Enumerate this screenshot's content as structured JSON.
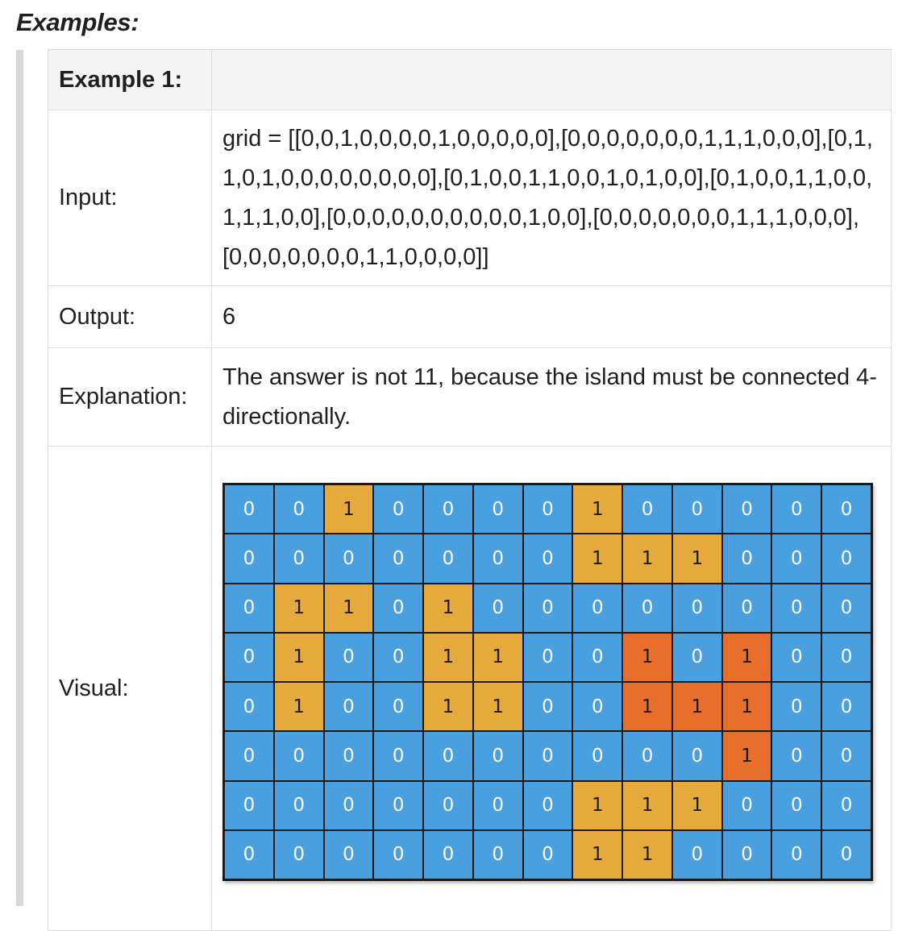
{
  "heading": "Examples:",
  "example": {
    "title": "Example 1:",
    "input_label": "Input:",
    "input_value": "grid = [[0,0,1,0,0,0,0,1,0,0,0,0,0],[0,0,0,0,0,0,0,1,1,1,0,0,0],[0,1,1,0,1,0,0,0,0,0,0,0,0],[0,1,0,0,1,1,0,0,1,0,1,0,0],[0,1,0,0,1,1,0,0,1,1,1,0,0],[0,0,0,0,0,0,0,0,0,0,1,0,0],[0,0,0,0,0,0,0,1,1,1,0,0,0],[0,0,0,0,0,0,0,1,1,0,0,0,0]]",
    "output_label": "Output:",
    "output_value": "6",
    "explanation_label": "Explanation:",
    "explanation_value": "The answer is not 11, because the island must be connected 4-directionally.",
    "visual_label": "Visual:"
  },
  "colors": {
    "water": "#4a9fdf",
    "land": "#e6a93c",
    "largest_island": "#e86f2b"
  },
  "grid": [
    [
      0,
      0,
      1,
      0,
      0,
      0,
      0,
      1,
      0,
      0,
      0,
      0,
      0
    ],
    [
      0,
      0,
      0,
      0,
      0,
      0,
      0,
      1,
      1,
      1,
      0,
      0,
      0
    ],
    [
      0,
      1,
      1,
      0,
      1,
      0,
      0,
      0,
      0,
      0,
      0,
      0,
      0
    ],
    [
      0,
      1,
      0,
      0,
      1,
      1,
      0,
      0,
      1,
      0,
      1,
      0,
      0
    ],
    [
      0,
      1,
      0,
      0,
      1,
      1,
      0,
      0,
      1,
      1,
      1,
      0,
      0
    ],
    [
      0,
      0,
      0,
      0,
      0,
      0,
      0,
      0,
      0,
      0,
      1,
      0,
      0
    ],
    [
      0,
      0,
      0,
      0,
      0,
      0,
      0,
      1,
      1,
      1,
      0,
      0,
      0
    ],
    [
      0,
      0,
      0,
      0,
      0,
      0,
      0,
      1,
      1,
      0,
      0,
      0,
      0
    ]
  ],
  "highlighted_cells": [
    [
      3,
      8
    ],
    [
      3,
      10
    ],
    [
      4,
      8
    ],
    [
      4,
      9
    ],
    [
      4,
      10
    ],
    [
      5,
      10
    ]
  ]
}
